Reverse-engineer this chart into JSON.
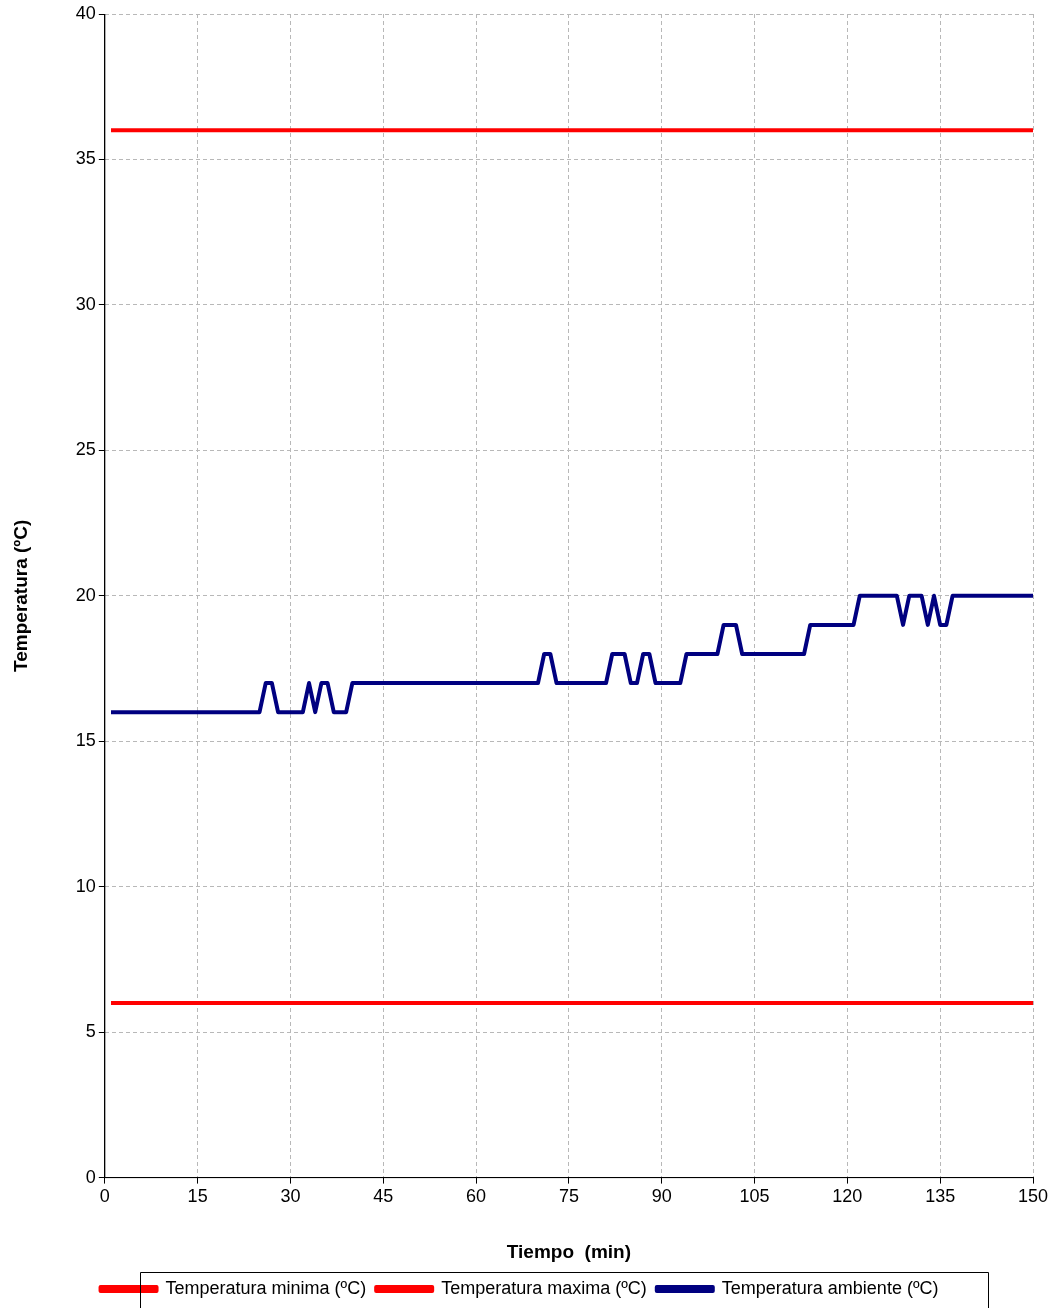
{
  "chart_data": {
    "type": "line",
    "xlabel": "Tiempo  (min)",
    "ylabel": "Temperatura (ºC)",
    "xlim": [
      0,
      150
    ],
    "xticks": [
      0,
      15,
      30,
      45,
      60,
      75,
      90,
      105,
      120,
      135,
      150
    ],
    "ylim": [
      0,
      40
    ],
    "yticks": [
      0,
      5,
      10,
      15,
      20,
      25,
      30,
      35,
      40
    ],
    "grid": true,
    "legend": "bottom",
    "marker": "none",
    "line_style": "solid",
    "series": [
      {
        "name": "Temperatura minima (ºC)",
        "color": "#ff0000",
        "x": [
          1,
          150
        ],
        "values": [
          6,
          6
        ]
      },
      {
        "name": "Temperatura maxima (ºC)",
        "color": "#ff0000",
        "x": [
          1,
          150
        ],
        "values": [
          36,
          36
        ]
      },
      {
        "name": "Temperatura ambiente (ºC)",
        "color": "#000080",
        "x": [
          1,
          25,
          26,
          27,
          28,
          32,
          33,
          34,
          35,
          36,
          37,
          39,
          40,
          70,
          71,
          72,
          73,
          81,
          82,
          84,
          85,
          86,
          87,
          88,
          89,
          93,
          94,
          99,
          100,
          102,
          103,
          113,
          114,
          121,
          122,
          128,
          129,
          130,
          132,
          133,
          134,
          135,
          136,
          137,
          150
        ],
        "values": [
          16,
          16,
          17,
          17,
          16,
          16,
          17,
          16,
          17,
          17,
          16,
          16,
          17,
          17,
          18,
          18,
          17,
          17,
          18,
          18,
          17,
          17,
          18,
          18,
          17,
          17,
          18,
          18,
          19,
          19,
          18,
          18,
          19,
          19,
          20,
          20,
          19,
          20,
          20,
          19,
          20,
          19,
          19,
          20,
          20
        ]
      }
    ]
  }
}
